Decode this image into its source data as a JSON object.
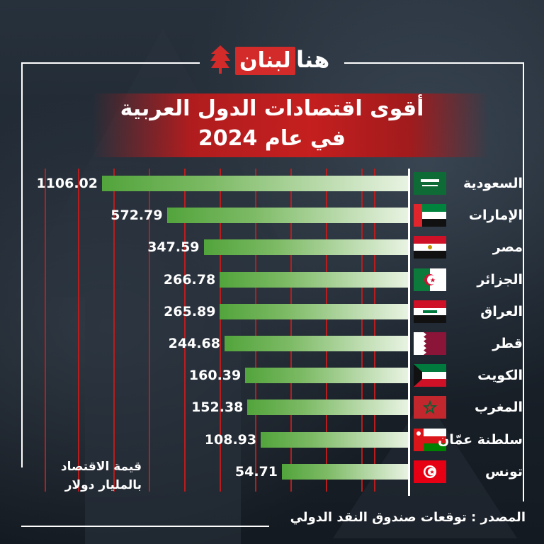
{
  "brand": {
    "logo_red": "لبنان",
    "logo_white": "هنا"
  },
  "title": {
    "line1": "أقوى اقتصادات الدول العربية",
    "line2": "في عام 2024"
  },
  "unit_note": {
    "line1": "قيمة الاقتصاد",
    "line2": "بالمليار دولار"
  },
  "source": "المصدر : توقعات صندوق النقد الدولي",
  "colors": {
    "bar_start": "#52a43c",
    "bar_end": "#e8f3e2",
    "accent_red": "#c51f1f",
    "background": "#1d2631"
  },
  "chart_data": {
    "type": "bar",
    "orientation": "horizontal",
    "categories": [
      "السعودية",
      "الإمارات",
      "مصر",
      "الجزائر",
      "العراق",
      "قطر",
      "الكويت",
      "المغرب",
      "سلطنة عمّان",
      "تونس"
    ],
    "values": [
      1106.02,
      572.79,
      347.59,
      266.78,
      265.89,
      244.68,
      160.39,
      152.38,
      108.93,
      54.71
    ],
    "value_labels": [
      "1106.02",
      "572.79",
      "347.59",
      "266.78",
      "265.89",
      "244.68",
      "160.39",
      "152.38",
      "108.93",
      "54.71"
    ],
    "flags": [
      "saudi-arabia-flag",
      "uae-flag",
      "egypt-flag",
      "algeria-flag",
      "iraq-flag",
      "qatar-flag",
      "kuwait-flag",
      "morocco-flag",
      "oman-flag",
      "tunisia-flag"
    ],
    "title": "أقوى اقتصادات الدول العربية في عام 2024",
    "xlabel": "قيمة الاقتصاد بالمليار دولار",
    "ylabel": "",
    "grid": true
  }
}
